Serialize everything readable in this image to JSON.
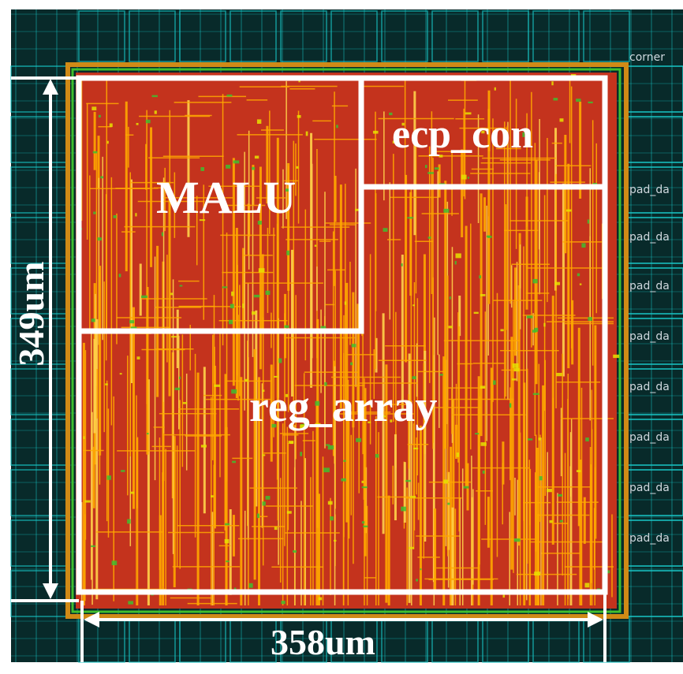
{
  "labels": {
    "malu": "MALU",
    "ecp_con": "ecp_con",
    "reg_array": "reg_array",
    "height": "349um",
    "width": "358um",
    "corner": "corner",
    "pads": [
      "pad_da",
      "pad_da",
      "pad_da",
      "pad_da",
      "pad_da",
      "pad_da",
      "pad_da",
      "pad_da"
    ]
  },
  "colors": {
    "io_background": "#082a2a",
    "pad_cyan": "#18c6c6",
    "core_red": "#c4331d",
    "wire_orange": "#ffa800",
    "wire_light": "#ffd24a",
    "cell_green": "#3fbf2f",
    "cell_yellow": "#e6e200",
    "outline": "#ffffff"
  }
}
